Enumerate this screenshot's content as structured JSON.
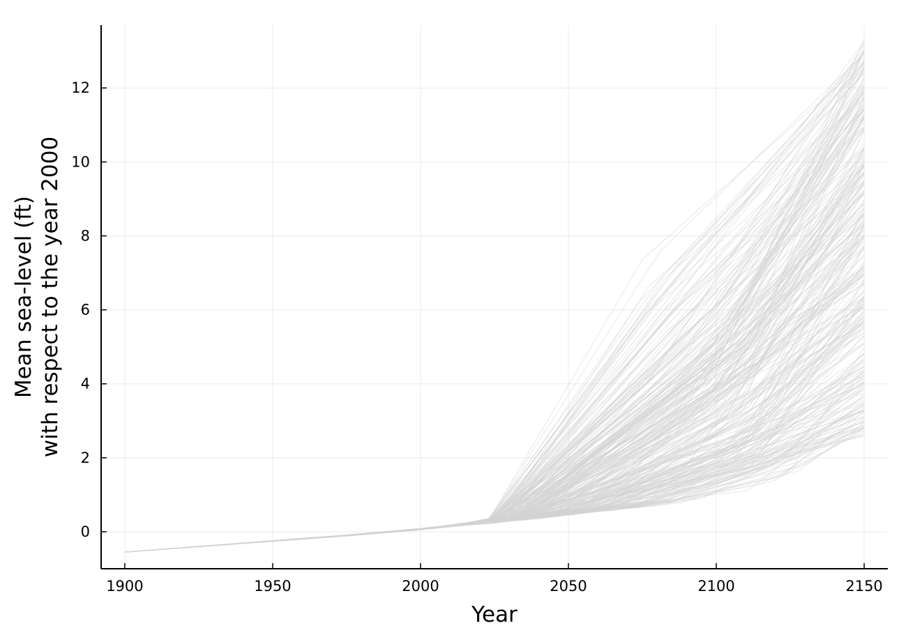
{
  "chart_data": {
    "type": "line",
    "title": "",
    "xlabel": "Year",
    "ylabel_lines": [
      "Mean sea-level (ft)",
      "with respect to the year 2000"
    ],
    "xlim": [
      1892,
      2158
    ],
    "ylim": [
      -1.0,
      13.7
    ],
    "xticks": [
      1900,
      1950,
      2000,
      2050,
      2100,
      2150
    ],
    "yticks": [
      0,
      2,
      4,
      6,
      8,
      10,
      12
    ],
    "grid": true,
    "legend": "none",
    "series_color": "#d3d3d3",
    "ensemble": {
      "shared_path": {
        "x": [
          1900,
          1925,
          1950,
          1975,
          2000,
          2015
        ],
        "y": [
          -0.55,
          -0.4,
          -0.25,
          -0.1,
          0.07,
          0.2
        ]
      },
      "final_year": 2150,
      "final_value_range": [
        2.6,
        13.3
      ],
      "member_count": 300
    },
    "series": [
      {
        "x": [
          1900,
          1950,
          2000,
          2020,
          2040,
          2070,
          2100,
          2150
        ],
        "y": [
          -0.55,
          -0.25,
          0.07,
          0.3,
          0.6,
          1.4,
          4.5,
          13.3
        ]
      },
      {
        "x": [
          1900,
          1950,
          2000,
          2020,
          2050,
          2080,
          2110,
          2150
        ],
        "y": [
          -0.55,
          -0.25,
          0.07,
          0.3,
          0.8,
          2.5,
          6.0,
          11.2
        ]
      },
      {
        "x": [
          1900,
          1950,
          2000,
          2020,
          2050,
          2090,
          2150
        ],
        "y": [
          -0.55,
          -0.25,
          0.07,
          0.25,
          0.6,
          1.8,
          8.6
        ]
      },
      {
        "x": [
          1900,
          1950,
          2000,
          2020,
          2060,
          2095,
          2150
        ],
        "y": [
          -0.55,
          -0.25,
          0.07,
          0.2,
          0.55,
          0.9,
          3.0
        ]
      },
      {
        "x": [
          1900,
          1950,
          2000,
          2030,
          2060,
          2100,
          2150
        ],
        "y": [
          -0.55,
          -0.25,
          0.07,
          0.3,
          0.7,
          1.5,
          2.6
        ]
      }
    ]
  }
}
